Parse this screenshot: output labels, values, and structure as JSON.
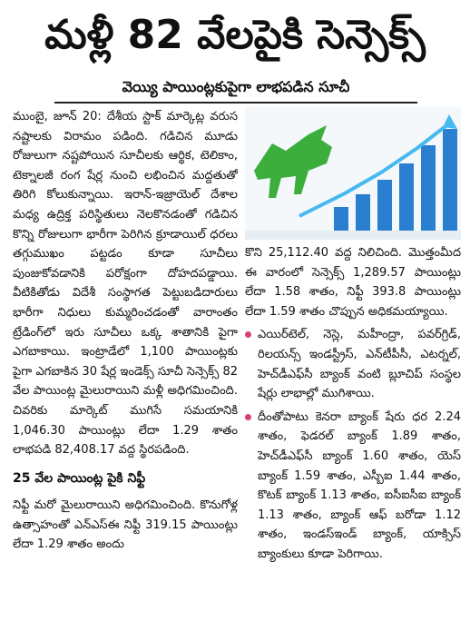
{
  "header": {
    "title": "మళ్లీ 82 వేలపైకి సెన్సెక్స్",
    "subtitle": "వెయ్యి పాయింట్లకుపైగా లాభపడిన సూచీ"
  },
  "left": {
    "paragraph_1": "ముంబై, జూన్ 20: దేశీయ స్టాక్ మార్కెట్ల వరుస నష్టాలకు విరామం పడింది. గడిచిన మూడు రోజులుగా నష్టపోయిన సూచీలకు ఆర్థిక, టెలికాం, టెక్నాలజీ రంగ షేర్ల నుంచి లభించిన మద్దతుతో తిరిగి కోలుకున్నాయి. ఇరాన్-ఇజ్రాయెల్ దేశాల మధ్య ఉద్రిక్త పరిస్థితులు నెలకొనడంతో గడిచిన కొన్ని రోజులుగా భారీగా పెరిగిన క్రూడాయిల్ ధరలు తగ్గుముఖం పట్టడం కూడా సూచీలు పుంజుకోవడానికి పరోక్షంగా దోహదపడ్డాయి. వీటికితోడు విదేశీ సంస్థాగత పెట్టుబడిదారులు భారీగా నిధులు కుమ్మరించడంతో వారాంతం ట్రేడింగ్‌లో ఇరు సూచీలు ఒక్క శాతానికి పైగా ఎగబాకాయి. ఇంట్రాడేలో 1,100 పాయింట్లకు పైగా ఎగబాకిన 30 షేర్ల ఇండెక్స్ సూచీ సెన్సెక్స్ 82 వేల పాయింట్ల మైలురాయిని మళ్లీ అధిగమించింది. చివరికు మార్కెట్ ముగిసే సమయానికి 1,046.30 పాయింట్లు లేదా 1.29 శాతం లాభపడి 82,408.17 వద్ద స్థిరపడింది.",
    "subheading": "25 వేల పాయింట్ల పైకి నిఫ్టీ",
    "paragraph_2": "నిఫ్టీ మరో మైలురాయిని అధిగమించింది. కొనుగోళ్ల ఉత్సాహంతో ఎన్ఎస్ఈ నిఫ్టీ 319.15 పాయింట్లు లేదా 1.29 శాతం అందు"
  },
  "right": {
    "paragraph": "కొని 25,112.40 వద్ద నిలిచింది. మొత్తంమీద ఈ వారంలో సెన్సెక్స్ 1,289.57 పాయింట్లు లేదా 1.58 శాతం, నిఫ్టీ 393.8 పాయింట్లు లేదా 1.59 శాతం చొప్పున అధికమయ్యాయి.",
    "bullets": [
      "ఎయిర్‌టెల్, నెస్లె, మహీంద్రా, పవర్‌గ్రిడ్, రిలయన్స్ ఇండస్ట్రీస్, ఎన్‌టీపీసీ, ఎటర్నల్, హెచ్‌డీఎఫ్‌సీ బ్యాంక్ వంటి బ్లూచిప్ సంస్థల షేర్లు లాభాల్లో ముగిశాయి.",
      "దీంతోపాటు కెనరా బ్యాంక్ షేరు ధర 2.24 శాతం, ఫెడరల్ బ్యాంక్ 1.89 శాతం, హెచ్‌డీఎఫ్‌సీ బ్యాంక్ 1.60 శాతం, యెస్ బ్యాంక్ 1.59 శాతం, ఎస్బీఐ 1.44 శాతం, కొటక్ బ్యాంక్ 1.13 శాతం, ఐసీఐసీఐ బ్యాంక్ 1.13 శాతం, బ్యాంక్ ఆఫ్ బరోడా 1.12 శాతం, ఇండస్ఇండ్ బ్యాంక్, యాక్సిస్ బ్యాంకులు కూడా పెరిగాయి."
    ]
  }
}
